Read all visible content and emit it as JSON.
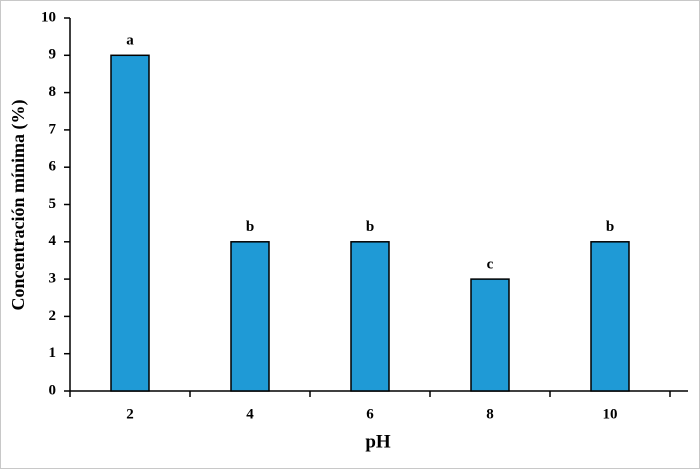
{
  "chart_data": {
    "type": "bar",
    "x_label": "pH",
    "y_label": "Concentración mínima (%)",
    "categories": [
      "2",
      "4",
      "6",
      "8",
      "10"
    ],
    "values": [
      9,
      4,
      4,
      3,
      4
    ],
    "group_labels": [
      "a",
      "b",
      "b",
      "c",
      "b"
    ],
    "color": "#1f9ad6",
    "ylim": [
      0,
      10
    ],
    "yticks": [
      0,
      1,
      2,
      3,
      4,
      5,
      6,
      7,
      8,
      9,
      10
    ],
    "grid": false
  }
}
